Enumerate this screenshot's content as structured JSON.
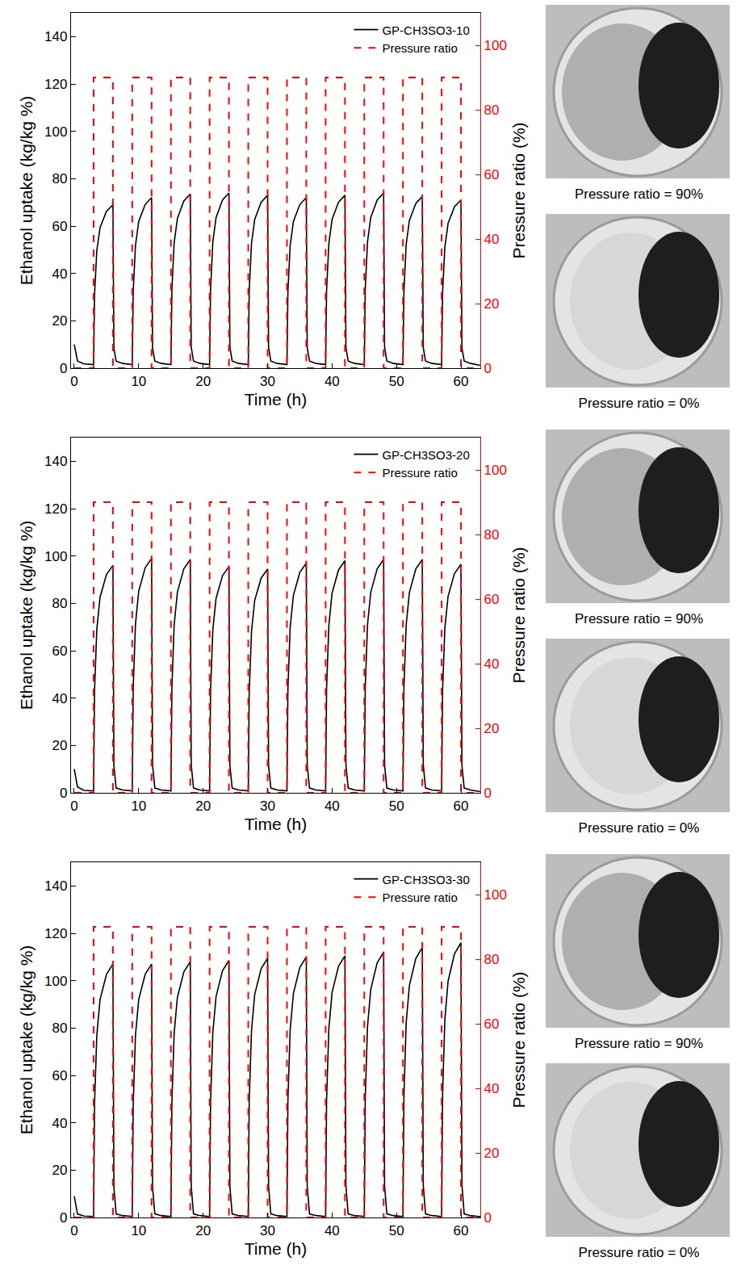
{
  "chart_data": [
    {
      "type": "line",
      "xlabel": "Time (h)",
      "ylabel": "Ethanol uptake (kg/kg %)",
      "y2label": "Pressure ratio (%)",
      "xlim": [
        -0.5,
        63
      ],
      "xticks": [
        0,
        10,
        20,
        30,
        40,
        50,
        60
      ],
      "ylim": [
        0,
        150
      ],
      "yticks": [
        0,
        20,
        40,
        60,
        80,
        100,
        120,
        140
      ],
      "y2lim": [
        0,
        110
      ],
      "y2ticks": [
        0,
        20,
        40,
        60,
        80,
        100
      ],
      "legend": "upper right",
      "series": [
        {
          "name": "GP-CH3SO3-10",
          "color": "#000000",
          "line_style": "solid",
          "x": [
            0,
            0.5,
            1.5,
            3,
            3.15,
            3.5,
            4,
            5,
            6,
            6.15,
            6.5,
            7.5,
            9,
            9.15,
            9.5,
            10,
            11,
            12,
            12.15,
            12.5,
            13.5,
            15,
            15.15,
            15.5,
            16,
            17,
            18,
            18.15,
            18.5,
            19.5,
            21,
            21.15,
            21.5,
            22,
            23,
            24,
            24.15,
            24.5,
            25.5,
            27,
            27.15,
            27.5,
            28,
            29,
            30,
            30.15,
            30.5,
            31.5,
            33,
            33.15,
            33.5,
            34,
            35,
            36,
            36.15,
            36.5,
            37.5,
            39,
            39.15,
            39.5,
            40,
            41,
            42,
            42.15,
            42.5,
            43.5,
            45,
            45.15,
            45.5,
            46,
            47,
            48,
            48.15,
            48.5,
            49.5,
            51,
            51.15,
            51.5,
            52,
            53,
            54,
            54.15,
            54.5,
            55.5,
            57,
            57.15,
            57.5,
            58,
            59,
            60,
            60.15,
            60.5,
            61.5,
            63
          ],
          "values": [
            10,
            3,
            1.8,
            1.5,
            31,
            49.7,
            59.3,
            66.2,
            69,
            8.3,
            3,
            2,
            1.5,
            32.4,
            51.8,
            61.9,
            69.1,
            72,
            8.6,
            3,
            2,
            1.5,
            33.1,
            52.9,
            63.2,
            70.6,
            73.5,
            8.8,
            3,
            2,
            1.5,
            33.3,
            53.3,
            63.6,
            71,
            74,
            8.9,
            3,
            2,
            1.5,
            32.9,
            52.6,
            62.8,
            70.1,
            73,
            8.8,
            3,
            2,
            1.5,
            32.4,
            51.8,
            61.9,
            69.1,
            72,
            8.6,
            3,
            2,
            1.5,
            32.9,
            52.6,
            62.8,
            70.1,
            73,
            8.8,
            3,
            2,
            1.5,
            33.3,
            53.3,
            63.6,
            71,
            74,
            8.9,
            3,
            2,
            1.5,
            32.6,
            52.2,
            62.4,
            69.6,
            72.5,
            8.7,
            3,
            2,
            1.5,
            32,
            51.1,
            61.1,
            68.2,
            71,
            8.5,
            3,
            2,
            1.2
          ]
        },
        {
          "name": "Pressure ratio",
          "color": "#ff0000",
          "line_style": "dash",
          "axis": "y2",
          "x": [
            0,
            3,
            3,
            6,
            6,
            9,
            9,
            12,
            12,
            15,
            15,
            18,
            18,
            21,
            21,
            24,
            24,
            27,
            27,
            30,
            30,
            33,
            33,
            36,
            36,
            39,
            39,
            42,
            42,
            45,
            45,
            48,
            48,
            51,
            51,
            54,
            54,
            57,
            57,
            60,
            60,
            63
          ],
          "values": [
            0,
            0,
            90,
            90,
            0,
            0,
            90,
            90,
            0,
            0,
            90,
            90,
            0,
            0,
            90,
            90,
            0,
            0,
            90,
            90,
            0,
            0,
            90,
            90,
            0,
            0,
            90,
            90,
            0,
            0,
            90,
            90,
            0,
            0,
            90,
            90,
            0,
            0,
            90,
            90,
            0,
            0
          ]
        }
      ]
    },
    {
      "type": "line",
      "xlabel": "Time (h)",
      "ylabel": "Ethanol uptake (kg/kg %)",
      "y2label": "Pressure ratio (%)",
      "xlim": [
        -0.5,
        63
      ],
      "xticks": [
        0,
        10,
        20,
        30,
        40,
        50,
        60
      ],
      "ylim": [
        0,
        150
      ],
      "yticks": [
        0,
        20,
        40,
        60,
        80,
        100,
        120,
        140
      ],
      "y2lim": [
        0,
        110
      ],
      "y2ticks": [
        0,
        20,
        40,
        60,
        80,
        100
      ],
      "legend": "upper right",
      "series": [
        {
          "name": "GP-CH3SO3-20",
          "color": "#000000",
          "line_style": "solid",
          "x": [
            0,
            0.5,
            1.5,
            3,
            3.15,
            3.5,
            4,
            5,
            6,
            6.15,
            6.5,
            7.5,
            9,
            9.15,
            9.5,
            10,
            11,
            12,
            12.15,
            12.5,
            13.5,
            15,
            15.15,
            15.5,
            16,
            17,
            18,
            18.15,
            18.5,
            19.5,
            21,
            21.15,
            21.5,
            22,
            23,
            24,
            24.15,
            24.5,
            25.5,
            27,
            27.15,
            27.5,
            28,
            29,
            30,
            30.15,
            30.5,
            31.5,
            33,
            33.15,
            33.5,
            34,
            35,
            36,
            36.15,
            36.5,
            37.5,
            39,
            39.15,
            39.5,
            40,
            41,
            42,
            42.15,
            42.5,
            43.5,
            45,
            45.15,
            45.5,
            46,
            47,
            48,
            48.15,
            48.5,
            49.5,
            51,
            51.15,
            51.5,
            52,
            53,
            54,
            54.15,
            54.5,
            55.5,
            57,
            57.15,
            57.5,
            58,
            59,
            60,
            60.15,
            60.5,
            61.5,
            63
          ],
          "values": [
            10,
            2.5,
            1,
            0.8,
            43.2,
            69.1,
            82.6,
            92.2,
            96,
            11.5,
            2,
            1.2,
            0.8,
            44.6,
            71.3,
            85.1,
            95,
            99,
            11.9,
            2,
            1.2,
            0.8,
            44.3,
            70.9,
            84.7,
            94.6,
            98.5,
            11.8,
            2,
            1.2,
            0.8,
            43,
            68.8,
            82.1,
            91.7,
            95.5,
            11.5,
            2,
            1.2,
            0.8,
            42.5,
            68,
            81.3,
            90.7,
            94.5,
            11.3,
            2,
            1.2,
            0.8,
            43.7,
            69.8,
            83.4,
            93.1,
            97,
            11.6,
            2,
            1.2,
            0.8,
            44.1,
            70.6,
            84.3,
            94.1,
            98,
            11.8,
            2,
            1.2,
            0.8,
            44.3,
            70.9,
            84.7,
            94.6,
            98.5,
            11.8,
            2,
            1.2,
            0.8,
            44.3,
            70.9,
            84.7,
            94.6,
            98.5,
            11.8,
            2,
            1.2,
            0.8,
            43.4,
            69.5,
            83,
            92.6,
            96.5,
            11.6,
            2,
            1.2,
            0.5
          ]
        },
        {
          "name": "Pressure ratio",
          "color": "#ff0000",
          "line_style": "dash",
          "axis": "y2",
          "x": [
            0,
            3,
            3,
            6,
            6,
            9,
            9,
            12,
            12,
            15,
            15,
            18,
            18,
            21,
            21,
            24,
            24,
            27,
            27,
            30,
            30,
            33,
            33,
            36,
            36,
            39,
            39,
            42,
            42,
            45,
            45,
            48,
            48,
            51,
            51,
            54,
            54,
            57,
            57,
            60,
            60,
            63
          ],
          "values": [
            0,
            0,
            90,
            90,
            0,
            0,
            90,
            90,
            0,
            0,
            90,
            90,
            0,
            0,
            90,
            90,
            0,
            0,
            90,
            90,
            0,
            0,
            90,
            90,
            0,
            0,
            90,
            90,
            0,
            0,
            90,
            90,
            0,
            0,
            90,
            90,
            0,
            0,
            90,
            90,
            0,
            0
          ]
        }
      ]
    },
    {
      "type": "line",
      "xlabel": "Time (h)",
      "ylabel": "Ethanol uptake (kg/kg %)",
      "y2label": "Pressure ratio (%)",
      "xlim": [
        -0.5,
        63
      ],
      "xticks": [
        0,
        10,
        20,
        30,
        40,
        50,
        60
      ],
      "ylim": [
        0,
        150
      ],
      "yticks": [
        0,
        20,
        40,
        60,
        80,
        100,
        120,
        140
      ],
      "y2lim": [
        0,
        110
      ],
      "y2ticks": [
        0,
        20,
        40,
        60,
        80,
        100
      ],
      "legend": "upper right",
      "series": [
        {
          "name": "GP-CH3SO3-30",
          "color": "#000000",
          "line_style": "solid",
          "x": [
            0,
            0.5,
            1.5,
            3,
            3.15,
            3.5,
            4,
            5,
            6,
            6.15,
            6.5,
            7.5,
            9,
            9.15,
            9.5,
            10,
            11,
            12,
            12.15,
            12.5,
            13.5,
            15,
            15.15,
            15.5,
            16,
            17,
            18,
            18.15,
            18.5,
            19.5,
            21,
            21.15,
            21.5,
            22,
            23,
            24,
            24.15,
            24.5,
            25.5,
            27,
            27.15,
            27.5,
            28,
            29,
            30,
            30.15,
            30.5,
            31.5,
            33,
            33.15,
            33.5,
            34,
            35,
            36,
            36.15,
            36.5,
            37.5,
            39,
            39.15,
            39.5,
            40,
            41,
            42,
            42.15,
            42.5,
            43.5,
            45,
            45.15,
            45.5,
            46,
            47,
            48,
            48.15,
            48.5,
            49.5,
            51,
            51.15,
            51.5,
            52,
            53,
            54,
            54.15,
            54.5,
            55.5,
            57,
            57.15,
            57.5,
            58,
            59,
            60,
            60.15,
            60.5,
            61.5,
            63
          ],
          "values": [
            9,
            1.5,
            0.6,
            0.4,
            48.2,
            77,
            92,
            102.7,
            107,
            12.8,
            1.5,
            0.8,
            0.4,
            48.2,
            77,
            92,
            102.7,
            107,
            12.8,
            1.5,
            0.8,
            0.4,
            48.6,
            77.8,
            92.9,
            103.7,
            108,
            13,
            1.5,
            0.8,
            0.4,
            48.8,
            78.1,
            93.3,
            104.2,
            108.5,
            13,
            1.5,
            0.8,
            0.4,
            49.3,
            78.8,
            94.2,
            105.1,
            109.5,
            13.1,
            1.5,
            0.8,
            0.4,
            49.5,
            79.2,
            94.6,
            105.6,
            110,
            13.2,
            1.5,
            0.8,
            0.4,
            49.7,
            79.6,
            95,
            106.1,
            110.5,
            13.3,
            1.5,
            0.8,
            0.4,
            50.4,
            80.6,
            96.3,
            107.5,
            112,
            13.4,
            1.5,
            0.8,
            0.4,
            51.3,
            82.1,
            98,
            109.4,
            114,
            13.7,
            1.5,
            0.8,
            0.4,
            52.2,
            83.5,
            99.8,
            111.4,
            116,
            13.9,
            1.5,
            0.8,
            0.3
          ]
        },
        {
          "name": "Pressure ratio",
          "color": "#ff0000",
          "line_style": "dash",
          "axis": "y2",
          "x": [
            0,
            3,
            3,
            6,
            6,
            9,
            9,
            12,
            12,
            15,
            15,
            18,
            18,
            21,
            21,
            24,
            24,
            27,
            27,
            30,
            30,
            33,
            33,
            36,
            36,
            39,
            39,
            42,
            42,
            45,
            45,
            48,
            48,
            51,
            51,
            54,
            54,
            57,
            57,
            60,
            60,
            63
          ],
          "values": [
            0,
            0,
            90,
            90,
            0,
            0,
            90,
            90,
            0,
            0,
            90,
            90,
            0,
            0,
            90,
            90,
            0,
            0,
            90,
            90,
            0,
            0,
            90,
            90,
            0,
            0,
            90,
            90,
            0,
            0,
            90,
            90,
            0,
            0,
            90,
            90,
            0,
            0,
            90,
            90,
            0,
            0
          ]
        }
      ]
    }
  ],
  "photos": [
    [
      "Pressure ratio = 90%",
      "Pressure ratio = 0%"
    ],
    [
      "Pressure ratio = 90%",
      "Pressure ratio = 0%"
    ],
    [
      "Pressure ratio = 90%",
      "Pressure ratio = 0%"
    ]
  ]
}
